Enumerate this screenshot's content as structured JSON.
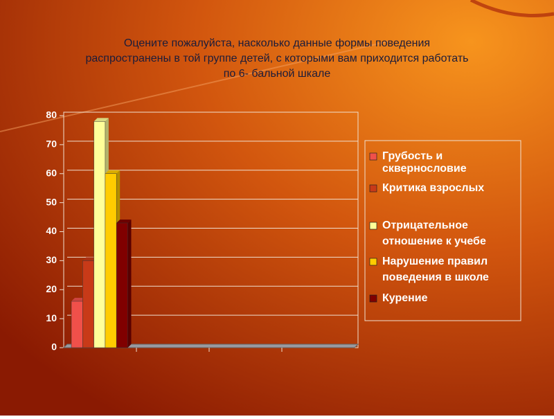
{
  "chart_data": {
    "type": "bar",
    "title": [
      "Оцените пожалуйста, насколько данные формы поведения",
      "распространены в той группе детей, с которыми вам приходится работать",
      "по 6- бальной шкале"
    ],
    "categories": [
      null,
      null,
      null,
      null
    ],
    "series": [
      {
        "name": "Грубость и скверносло­вие",
        "color": "#f0504a",
        "values": [
          16,
          null,
          null,
          null
        ]
      },
      {
        "name": "Критика взрослых",
        "color": "#c83a18",
        "values": [
          30,
          null,
          null,
          null
        ]
      },
      {
        "name": "Отрицательное отношение к учебе",
        "color": "#ffff99",
        "values": [
          78,
          null,
          null,
          null
        ]
      },
      {
        "name": "Нарушение правил поведения в школе",
        "color": "#ffcc00",
        "values": [
          60,
          null,
          null,
          null
        ]
      },
      {
        "name": "Курение",
        "color": "#800000",
        "values": [
          43,
          null,
          null,
          null
        ]
      }
    ],
    "ylim": [
      0,
      80
    ],
    "yticks": [
      0,
      10,
      20,
      30,
      40,
      50,
      60,
      70,
      80
    ],
    "grid": true,
    "legend": "right"
  }
}
